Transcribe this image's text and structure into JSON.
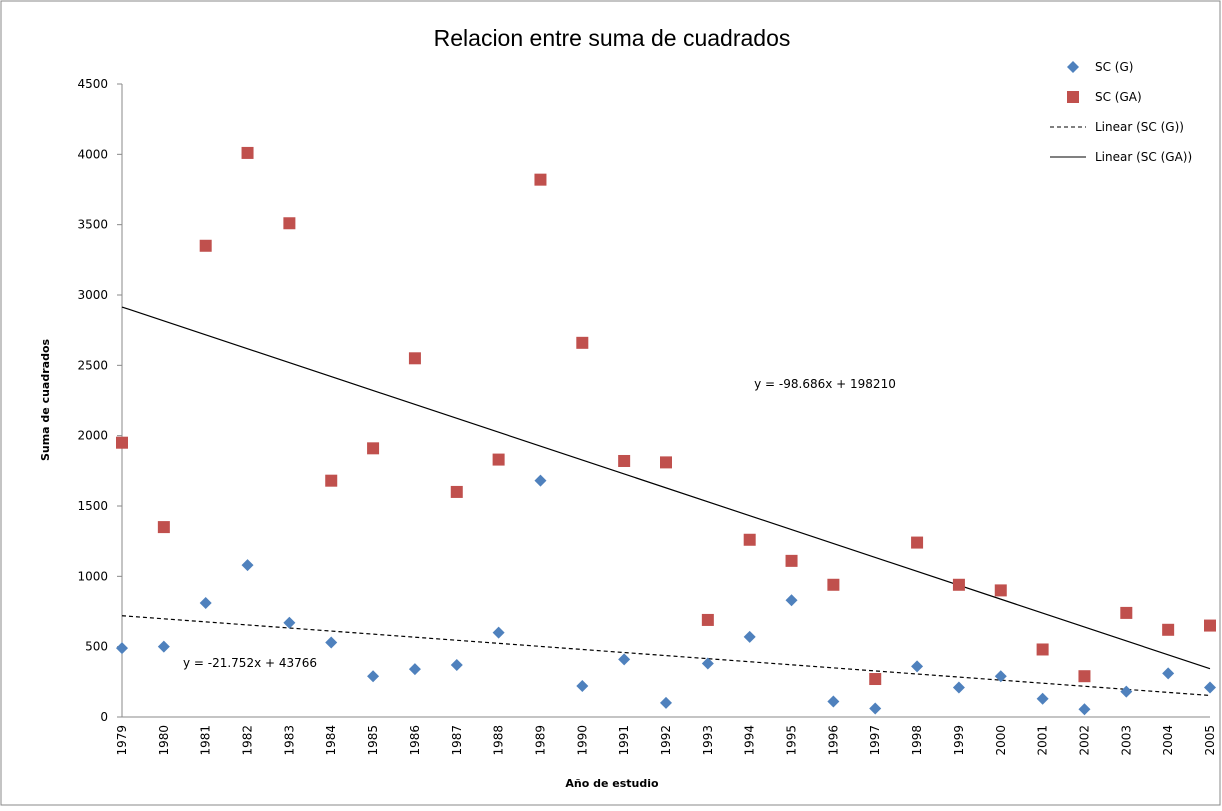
{
  "chart_data": {
    "type": "scatter",
    "title": "Relacion entre suma de cuadrados",
    "x_label": "Año de estudio",
    "y_label": "Suma de cuadrados",
    "categories": [
      "1979",
      "1980",
      "1981",
      "1982",
      "1983",
      "1984",
      "1985",
      "1986",
      "1987",
      "1988",
      "1989",
      "1990",
      "1991",
      "1992",
      "1993",
      "1994",
      "1995",
      "1996",
      "1997",
      "1998",
      "1999",
      "2000",
      "2001",
      "2002",
      "2003",
      "2004",
      "2005"
    ],
    "series": [
      {
        "name": "SC (G)",
        "color": "#4f81bd",
        "marker": "diamond",
        "values": [
          490,
          500,
          810,
          1080,
          670,
          530,
          290,
          340,
          370,
          600,
          1680,
          220,
          410,
          100,
          380,
          570,
          830,
          110,
          60,
          360,
          210,
          290,
          130,
          55,
          180,
          310,
          210
        ]
      },
      {
        "name": "SC (GA)",
        "color": "#c0504d",
        "marker": "square",
        "values": [
          1950,
          1350,
          3350,
          4010,
          3510,
          1680,
          1910,
          2550,
          1600,
          1830,
          3820,
          2660,
          1820,
          1810,
          690,
          1260,
          1110,
          940,
          270,
          1240,
          940,
          900,
          480,
          290,
          740,
          620,
          650
        ]
      }
    ],
    "trendlines": [
      {
        "name": "Linear (SC (G))",
        "series": 0,
        "dash": true,
        "equation": "y = -21.752x + 43766"
      },
      {
        "name": "Linear (SC (GA))",
        "series": 1,
        "dash": false,
        "equation": "y = -98.686x + 198210"
      }
    ],
    "ylim": [
      0,
      4500
    ],
    "yticks": [
      0,
      500,
      1000,
      1500,
      2000,
      2500,
      3000,
      3500,
      4000,
      4500
    ],
    "grid": false,
    "legend": "top-right"
  }
}
